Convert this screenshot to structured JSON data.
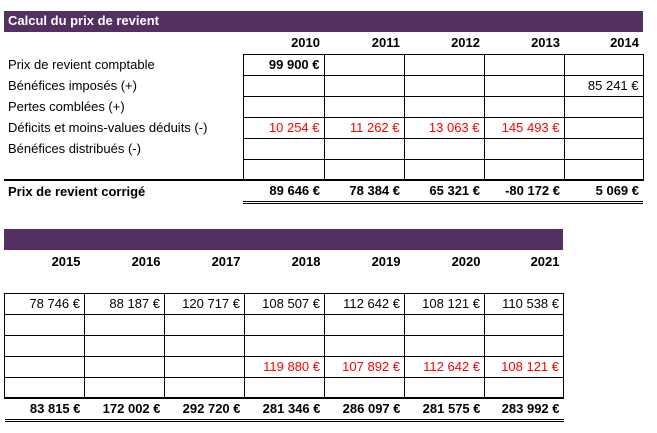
{
  "section1": {
    "title": "Calcul du prix de revient",
    "years": [
      "2010",
      "2011",
      "2012",
      "2013",
      "2014"
    ],
    "rows": [
      {
        "label": "Prix de revient comptable",
        "values": [
          "99 900 €",
          "",
          "",
          "",
          ""
        ],
        "color": "black"
      },
      {
        "label": "Bénéfices imposés (+)",
        "values": [
          "",
          "",
          "",
          "",
          "85 241 €"
        ],
        "color": "black"
      },
      {
        "label": "Pertes comblées (+)",
        "values": [
          "",
          "",
          "",
          "",
          ""
        ],
        "color": "black"
      },
      {
        "label": "Déficits et moins-values déduits (-)",
        "values": [
          "10 254 €",
          "11 262 €",
          "13 063 €",
          "145 493 €",
          ""
        ],
        "color": "red"
      },
      {
        "label": "Bénéfices distribués (-)",
        "values": [
          "",
          "",
          "",
          "",
          ""
        ],
        "color": "black"
      }
    ],
    "total": {
      "label": "Prix de revient corrigé",
      "values": [
        "89 646 €",
        "78 384 €",
        "65 321 €",
        "-80 172 €",
        "5 069 €"
      ]
    }
  },
  "section2": {
    "years": [
      "2015",
      "2016",
      "2017",
      "2018",
      "2019",
      "2020",
      "2021"
    ],
    "rows": [
      {
        "values": [
          "78 746 €",
          "88 187 €",
          "120 717 €",
          "108 507 €",
          "112 642 €",
          "108 121 €",
          "110 538 €"
        ],
        "color": "black"
      },
      {
        "values": [
          "",
          "",
          "",
          "",
          "",
          "",
          ""
        ],
        "color": "black"
      },
      {
        "values": [
          "",
          "",
          "",
          "",
          "",
          "",
          ""
        ],
        "color": "black"
      },
      {
        "values": [
          "",
          "",
          "",
          "119 880 €",
          "107 892 €",
          "112 642 €",
          "108 121 €"
        ],
        "color": "red"
      },
      {
        "values": [
          "",
          "",
          "",
          "",
          "",
          "",
          ""
        ],
        "color": "black"
      }
    ],
    "total": {
      "values": [
        "83 815 €",
        "172 002 €",
        "292 720 €",
        "281 346 €",
        "286 097 €",
        "281 575 €",
        "283 992 €"
      ]
    }
  },
  "colors": {
    "band": "#523062",
    "negative": "#ff0000"
  }
}
